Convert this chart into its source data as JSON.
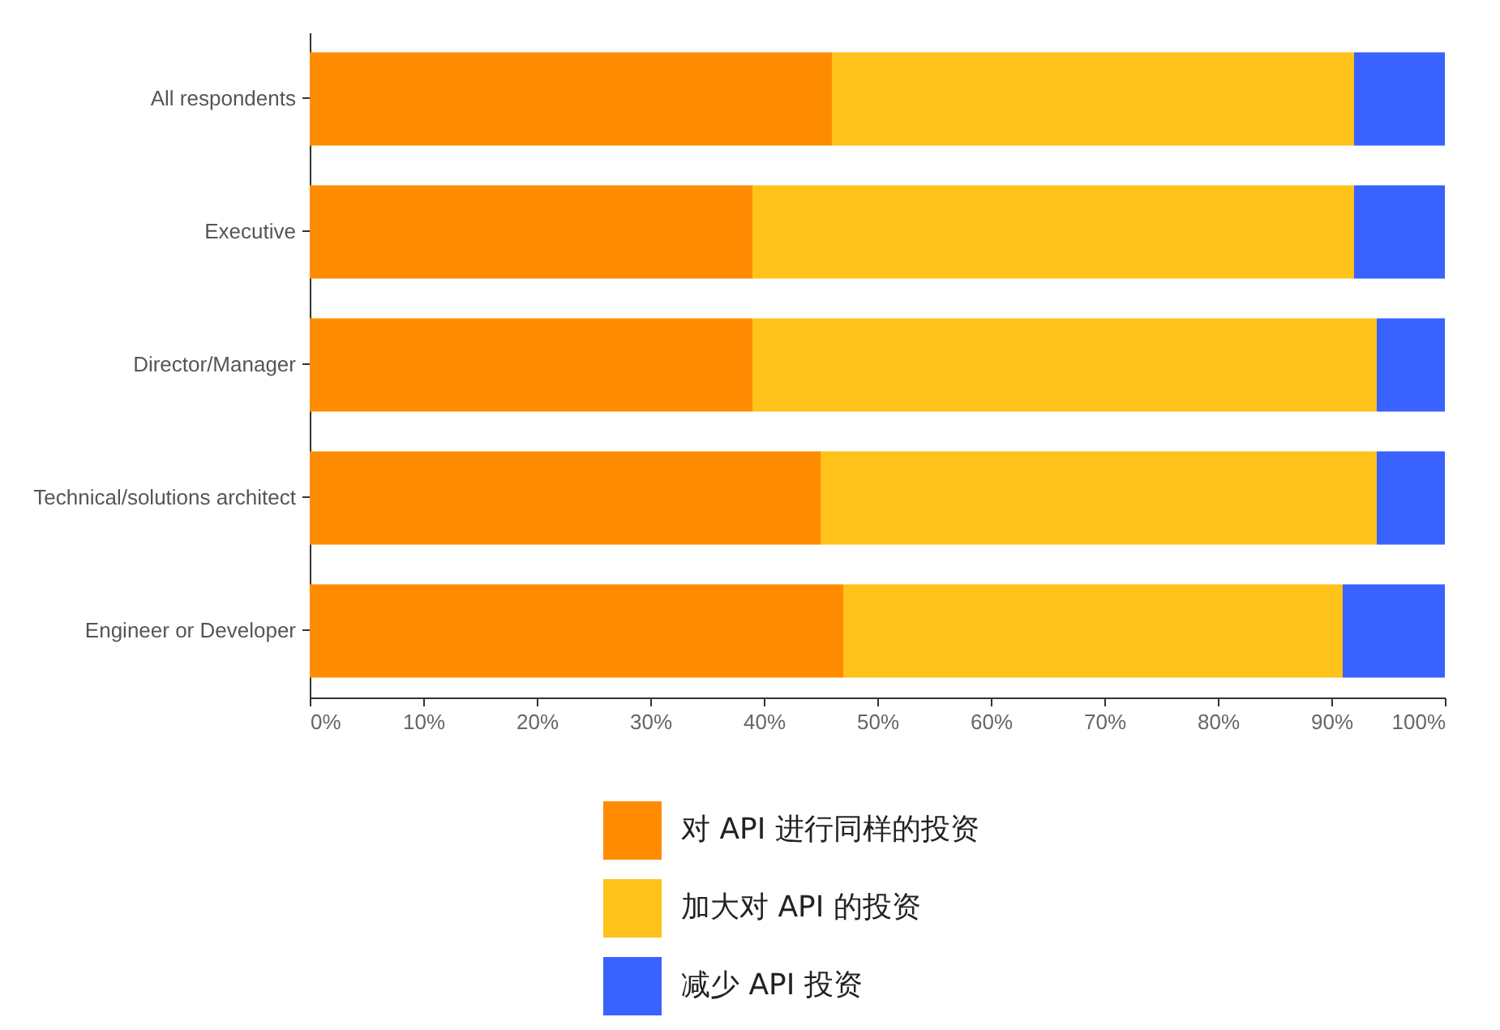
{
  "chart_data": {
    "type": "bar",
    "orientation": "horizontal",
    "stacked": true,
    "categories": [
      "All respondents",
      "Executive",
      "Director/Manager",
      "Technical/solutions architect",
      "Engineer or Developer"
    ],
    "series": [
      {
        "name": "对 API 进行同样的投资",
        "color": "#ff8c00",
        "values": [
          46,
          39,
          39,
          45,
          47
        ]
      },
      {
        "name": "加大对 API 的投资",
        "color": "#ffc21a",
        "values": [
          46,
          53,
          55,
          49,
          44
        ]
      },
      {
        "name": "减少 API 投资",
        "color": "#3a62ff",
        "values": [
          8,
          8,
          6,
          6,
          9
        ]
      }
    ],
    "xlim": [
      0,
      100
    ],
    "xticks": [
      {
        "value": 0,
        "label": "0%"
      },
      {
        "value": 10,
        "label": "10%"
      },
      {
        "value": 20,
        "label": "20%"
      },
      {
        "value": 30,
        "label": "30%"
      },
      {
        "value": 40,
        "label": "40%"
      },
      {
        "value": 50,
        "label": "50%"
      },
      {
        "value": 60,
        "label": "60%"
      },
      {
        "value": 70,
        "label": "70%"
      },
      {
        "value": 80,
        "label": "80%"
      },
      {
        "value": 90,
        "label": "90%"
      },
      {
        "value": 100,
        "label": "100%"
      }
    ],
    "legend": "bottom",
    "grid": false
  }
}
